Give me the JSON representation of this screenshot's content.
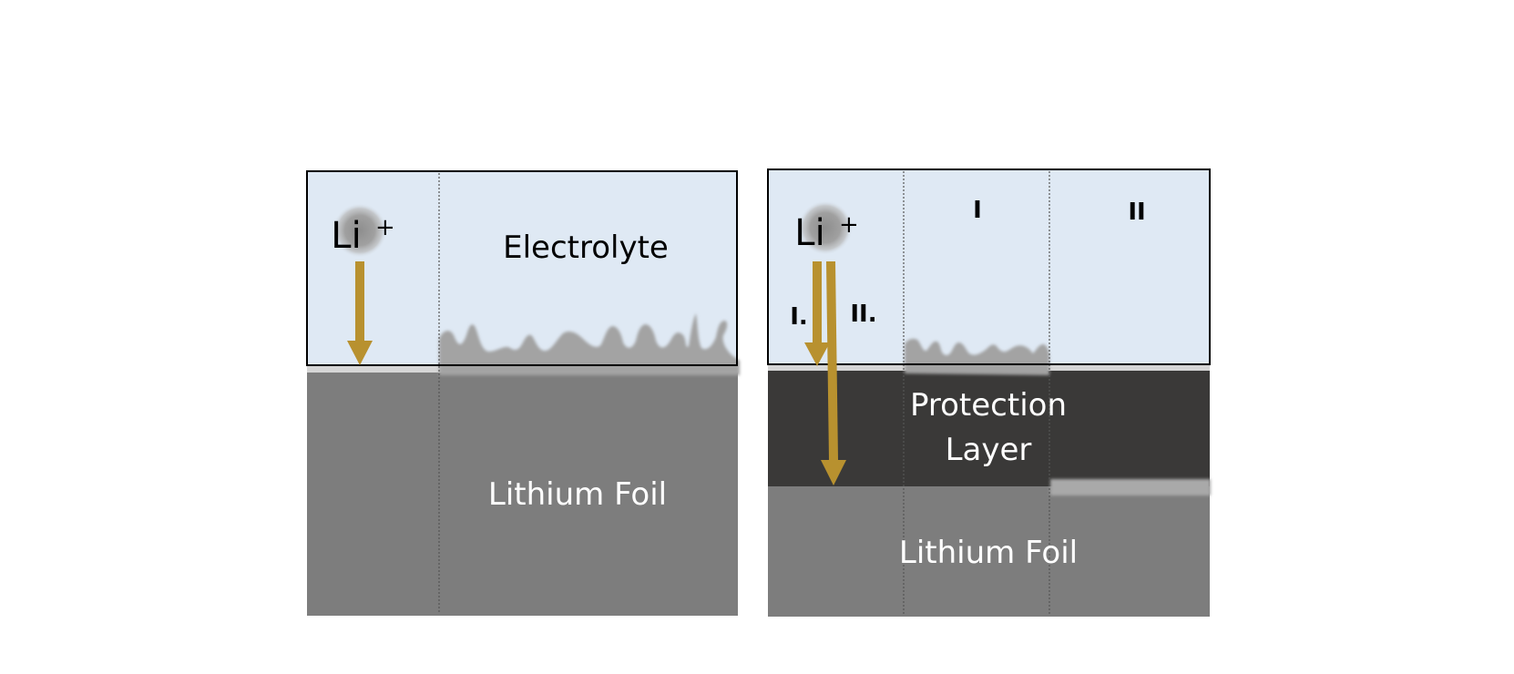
{
  "left_panel": {
    "ion_label": "Li",
    "ion_charge": "+",
    "electrolyte_label": "Electrolyte",
    "foil_label": "Lithium Foil"
  },
  "right_panel": {
    "ion_label": "Li",
    "ion_charge": "+",
    "path_one_label": "I.",
    "path_two_label": "II.",
    "region_one_label": "I",
    "region_two_label": "II",
    "protection_label_line1": "Protection",
    "protection_label_line2": "Layer",
    "foil_label": "Lithium Foil"
  },
  "colors": {
    "electrolyte": "#dfe9f4",
    "foil": "#7d7d7d",
    "protection_layer": "#3a3938",
    "sei_strip": "#d6d6d6",
    "dendrite": "#a3a3a3",
    "arrow": "#b8912f",
    "ion": "#9a9a9a",
    "border": "#000000"
  }
}
